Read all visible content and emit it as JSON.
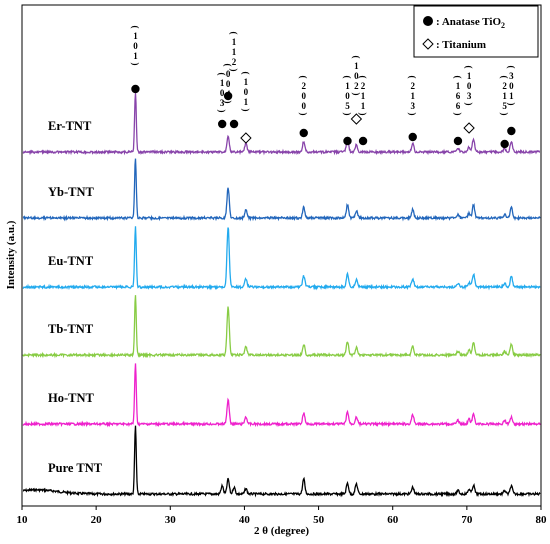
{
  "chart_data": {
    "type": "line",
    "xlabel": "2 θ (degree)",
    "ylabel": "Intensity (a.u.)",
    "xlim": [
      10,
      80
    ],
    "xticks": [
      10,
      20,
      30,
      40,
      50,
      60,
      70,
      80
    ],
    "grid": false,
    "legend": {
      "placement": "top-right",
      "items": [
        {
          "marker": "filled-circle",
          "label": "Anatase TiO",
          "sub": "2"
        },
        {
          "marker": "open-diamond",
          "label": "Titanium"
        }
      ]
    },
    "series": [
      {
        "name": "Pure TNT",
        "color": "#000000",
        "peaks": [
          {
            "x": 25.3,
            "h": 1.0
          },
          {
            "x": 37.0,
            "h": 0.12
          },
          {
            "x": 37.8,
            "h": 0.22
          },
          {
            "x": 38.6,
            "h": 0.1
          },
          {
            "x": 40.2,
            "h": 0.08
          },
          {
            "x": 48.0,
            "h": 0.22
          },
          {
            "x": 53.9,
            "h": 0.16
          },
          {
            "x": 55.1,
            "h": 0.15
          },
          {
            "x": 62.7,
            "h": 0.1
          },
          {
            "x": 68.8,
            "h": 0.05
          },
          {
            "x": 70.3,
            "h": 0.07
          },
          {
            "x": 70.9,
            "h": 0.13
          },
          {
            "x": 75.1,
            "h": 0.05
          },
          {
            "x": 76.0,
            "h": 0.12
          }
        ]
      },
      {
        "name": "Ho-TNT",
        "color": "#ee22cc",
        "peaks": [
          {
            "x": 25.3,
            "h": 1.0
          },
          {
            "x": 37.8,
            "h": 0.4
          },
          {
            "x": 40.2,
            "h": 0.12
          },
          {
            "x": 48.0,
            "h": 0.18
          },
          {
            "x": 53.9,
            "h": 0.2
          },
          {
            "x": 55.1,
            "h": 0.12
          },
          {
            "x": 62.7,
            "h": 0.15
          },
          {
            "x": 68.8,
            "h": 0.06
          },
          {
            "x": 70.3,
            "h": 0.08
          },
          {
            "x": 70.9,
            "h": 0.16
          },
          {
            "x": 75.1,
            "h": 0.06
          },
          {
            "x": 76.0,
            "h": 0.12
          }
        ]
      },
      {
        "name": "Tb-TNT",
        "color": "#88cc44",
        "peaks": [
          {
            "x": 25.3,
            "h": 1.0
          },
          {
            "x": 37.8,
            "h": 0.8
          },
          {
            "x": 40.2,
            "h": 0.14
          },
          {
            "x": 48.0,
            "h": 0.18
          },
          {
            "x": 53.9,
            "h": 0.22
          },
          {
            "x": 55.1,
            "h": 0.12
          },
          {
            "x": 62.7,
            "h": 0.14
          },
          {
            "x": 68.8,
            "h": 0.06
          },
          {
            "x": 70.3,
            "h": 0.08
          },
          {
            "x": 70.9,
            "h": 0.22
          },
          {
            "x": 75.1,
            "h": 0.06
          },
          {
            "x": 76.0,
            "h": 0.18
          }
        ]
      },
      {
        "name": "Eu-TNT",
        "color": "#22aaee",
        "peaks": [
          {
            "x": 25.3,
            "h": 1.0
          },
          {
            "x": 37.8,
            "h": 1.0
          },
          {
            "x": 40.2,
            "h": 0.14
          },
          {
            "x": 48.0,
            "h": 0.18
          },
          {
            "x": 53.9,
            "h": 0.22
          },
          {
            "x": 55.1,
            "h": 0.12
          },
          {
            "x": 62.7,
            "h": 0.14
          },
          {
            "x": 68.8,
            "h": 0.06
          },
          {
            "x": 70.3,
            "h": 0.08
          },
          {
            "x": 70.9,
            "h": 0.22
          },
          {
            "x": 75.1,
            "h": 0.06
          },
          {
            "x": 76.0,
            "h": 0.18
          }
        ]
      },
      {
        "name": "Yb-TNT",
        "color": "#2266bb",
        "peaks": [
          {
            "x": 25.3,
            "h": 1.0
          },
          {
            "x": 37.8,
            "h": 0.5
          },
          {
            "x": 40.2,
            "h": 0.14
          },
          {
            "x": 48.0,
            "h": 0.18
          },
          {
            "x": 53.9,
            "h": 0.22
          },
          {
            "x": 55.1,
            "h": 0.12
          },
          {
            "x": 62.7,
            "h": 0.14
          },
          {
            "x": 68.8,
            "h": 0.06
          },
          {
            "x": 70.3,
            "h": 0.08
          },
          {
            "x": 70.9,
            "h": 0.22
          },
          {
            "x": 75.1,
            "h": 0.06
          },
          {
            "x": 76.0,
            "h": 0.18
          }
        ]
      },
      {
        "name": "Er-TNT",
        "color": "#8844aa",
        "peaks": [
          {
            "x": 25.3,
            "h": 1.0
          },
          {
            "x": 37.8,
            "h": 0.28
          },
          {
            "x": 40.2,
            "h": 0.14
          },
          {
            "x": 48.0,
            "h": 0.18
          },
          {
            "x": 53.9,
            "h": 0.22
          },
          {
            "x": 55.1,
            "h": 0.12
          },
          {
            "x": 62.7,
            "h": 0.14
          },
          {
            "x": 68.8,
            "h": 0.06
          },
          {
            "x": 70.3,
            "h": 0.08
          },
          {
            "x": 70.9,
            "h": 0.22
          },
          {
            "x": 75.1,
            "h": 0.06
          },
          {
            "x": 76.0,
            "h": 0.18
          }
        ]
      }
    ],
    "annotations": [
      {
        "x": 25.3,
        "lines": [
          "1",
          "0",
          "1"
        ],
        "marker": "circle"
      },
      {
        "x": 37.0,
        "lines": [
          "1",
          "0",
          "3"
        ],
        "marker": "circle"
      },
      {
        "x": 37.8,
        "lines": [
          "0",
          "0",
          "4"
        ],
        "marker": "circle"
      },
      {
        "x": 38.6,
        "lines": [
          "1",
          "1",
          "2"
        ],
        "marker": "circle"
      },
      {
        "x": 40.2,
        "lines": [
          "1",
          "0",
          "1"
        ],
        "marker": "diamond"
      },
      {
        "x": 48.0,
        "lines": [
          "2",
          "0",
          "0"
        ],
        "marker": "circle"
      },
      {
        "x": 53.9,
        "lines": [
          "1",
          "0",
          "5"
        ],
        "marker": "circle"
      },
      {
        "x": 55.1,
        "lines": [
          "1",
          "0",
          "2"
        ],
        "marker": "diamond"
      },
      {
        "x": 56.0,
        "lines": [
          "2",
          "1",
          "1"
        ],
        "marker": "circle"
      },
      {
        "x": 62.7,
        "lines": [
          "2",
          "1",
          "3"
        ],
        "marker": "circle"
      },
      {
        "x": 68.8,
        "lines": [
          "1",
          "6",
          "6"
        ],
        "marker": "circle"
      },
      {
        "x": 70.3,
        "lines": [
          "1",
          "0",
          "3"
        ],
        "marker": "diamond"
      },
      {
        "x": 75.1,
        "lines": [
          "2",
          "1",
          "5"
        ],
        "marker": "circle"
      },
      {
        "x": 76.0,
        "lines": [
          "3",
          "0",
          "1"
        ],
        "marker": "circle"
      }
    ]
  }
}
